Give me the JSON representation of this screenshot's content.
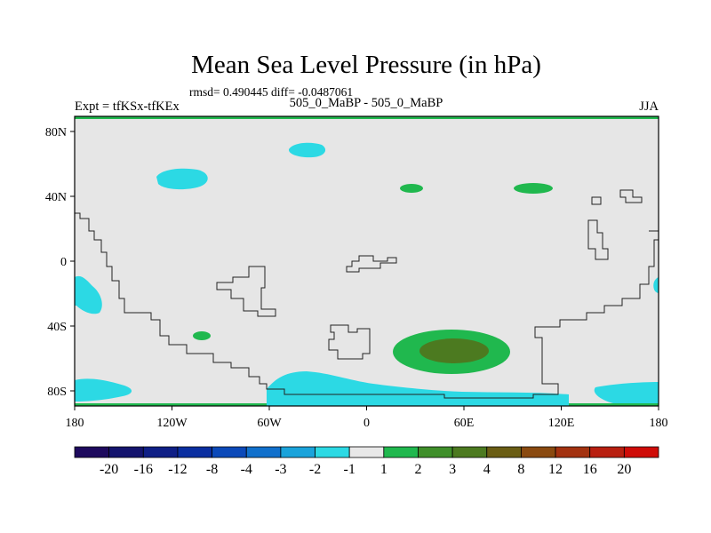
{
  "chart_data": {
    "type": "contour-map",
    "title": "Mean Sea Level Pressure (in hPa)",
    "stats": "rmsd= 0.490445 diff= -0.0487061",
    "left_label": "Expt = tfKSx-tfKEx",
    "center_label": "505_0_MaBP - 505_0_MaBP",
    "right_label": "JJA",
    "x_ticks": [
      "180",
      "120W",
      "60W",
      "0",
      "60E",
      "120E",
      "180"
    ],
    "y_ticks": [
      "80N",
      "40N",
      "0",
      "40S",
      "80S"
    ],
    "xlim": [
      -180,
      180
    ],
    "ylim": [
      -90,
      90
    ],
    "colorbar": {
      "labels": [
        "-20",
        "-16",
        "-12",
        "-8",
        "-4",
        "-3",
        "-2",
        "-1",
        "1",
        "2",
        "3",
        "4",
        "8",
        "12",
        "16",
        "20"
      ],
      "colors": [
        "#1e0a5e",
        "#14146e",
        "#0f1f86",
        "#0a2ea0",
        "#0b49b9",
        "#1070cc",
        "#1aa3db",
        "#2cd9e4",
        "#e8e8e8",
        "#20b84e",
        "#3f8f2a",
        "#4c7a20",
        "#6a5d14",
        "#8a4a10",
        "#a33210",
        "#b81f10",
        "#cf0c08"
      ]
    },
    "background_color": "#e6e6e6",
    "regions": [
      {
        "name": "positive-anomaly-south-atlantic",
        "range": "2 to 4",
        "peak_lon": 50,
        "peak_lat": -55
      },
      {
        "name": "negative-anomaly-antarctic",
        "range": "-2 to -1",
        "lat": -85
      }
    ]
  }
}
